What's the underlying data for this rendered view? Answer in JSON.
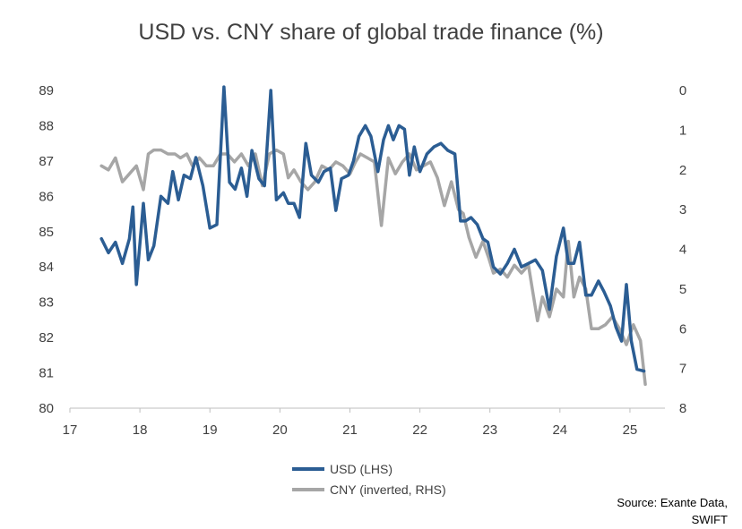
{
  "chart_data": {
    "type": "line",
    "title": "USD vs. CNY share of global trade finance (%)",
    "source_line1": "Source: Exante Data,",
    "source_line2": "SWIFT",
    "xlim": [
      17,
      25.5
    ],
    "x_ticks": [
      17,
      18,
      19,
      20,
      21,
      22,
      23,
      24,
      25
    ],
    "y_left_lim": [
      80,
      89
    ],
    "y_left_ticks": [
      80,
      81,
      82,
      83,
      84,
      85,
      86,
      87,
      88,
      89
    ],
    "y_right_lim": [
      0,
      8
    ],
    "y_right_inverted": true,
    "y_right_ticks": [
      0,
      1,
      2,
      3,
      4,
      5,
      6,
      7,
      8
    ],
    "grid": false,
    "legend_position": "bottom-center",
    "series": [
      {
        "name": "USD (LHS)",
        "axis": "left",
        "color": "#2B5D93",
        "x": [
          17.45,
          17.55,
          17.65,
          17.75,
          17.85,
          17.9,
          17.95,
          18.05,
          18.12,
          18.2,
          18.3,
          18.4,
          18.47,
          18.55,
          18.63,
          18.72,
          18.8,
          18.9,
          19.0,
          19.1,
          19.2,
          19.28,
          19.36,
          19.45,
          19.53,
          19.6,
          19.7,
          19.78,
          19.87,
          19.95,
          20.05,
          20.12,
          20.2,
          20.28,
          20.37,
          20.45,
          20.55,
          20.63,
          20.72,
          20.8,
          20.88,
          20.98,
          21.05,
          21.13,
          21.22,
          21.3,
          21.4,
          21.48,
          21.55,
          21.62,
          21.7,
          21.78,
          21.85,
          21.92,
          22.0,
          22.1,
          22.2,
          22.3,
          22.4,
          22.5,
          22.58,
          22.65,
          22.73,
          22.82,
          22.9,
          22.97,
          23.05,
          23.15,
          23.25,
          23.35,
          23.45,
          23.55,
          23.65,
          23.75,
          23.85,
          23.95,
          24.05,
          24.12,
          24.2,
          24.28,
          24.37,
          24.45,
          24.55,
          24.63,
          24.72,
          24.8,
          24.88,
          24.95,
          25.02,
          25.1,
          25.2
        ],
        "values": [
          84.8,
          84.4,
          84.7,
          84.1,
          84.8,
          85.7,
          83.5,
          85.8,
          84.2,
          84.6,
          86.0,
          85.8,
          86.7,
          85.9,
          86.6,
          86.5,
          87.1,
          86.3,
          85.1,
          85.2,
          89.1,
          86.4,
          86.2,
          86.8,
          86.0,
          87.3,
          86.5,
          86.3,
          89.0,
          85.9,
          86.1,
          85.8,
          85.8,
          85.4,
          87.5,
          86.6,
          86.4,
          86.7,
          86.8,
          85.6,
          86.5,
          86.6,
          87.0,
          87.7,
          88.0,
          87.7,
          86.7,
          87.6,
          88.0,
          87.6,
          88.0,
          87.9,
          86.6,
          87.4,
          86.7,
          87.2,
          87.4,
          87.5,
          87.3,
          87.2,
          85.3,
          85.3,
          85.4,
          85.2,
          84.8,
          84.7,
          84.0,
          83.8,
          84.1,
          84.5,
          84.0,
          84.1,
          84.2,
          83.9,
          82.8,
          84.3,
          85.1,
          84.1,
          84.1,
          84.7,
          83.2,
          83.2,
          83.6,
          83.3,
          82.9,
          82.3,
          81.9,
          83.5,
          81.9,
          81.1,
          81.05
        ]
      },
      {
        "name": "CNY (inverted, RHS)",
        "axis": "right",
        "color": "#A6A6A6",
        "x": [
          17.45,
          17.55,
          17.65,
          17.75,
          17.85,
          17.95,
          18.05,
          18.12,
          18.2,
          18.3,
          18.4,
          18.5,
          18.58,
          18.67,
          18.75,
          18.85,
          18.95,
          19.05,
          19.15,
          19.25,
          19.35,
          19.45,
          19.55,
          19.65,
          19.75,
          19.85,
          19.95,
          20.05,
          20.12,
          20.2,
          20.3,
          20.4,
          20.5,
          20.6,
          20.7,
          20.8,
          20.9,
          21.0,
          21.08,
          21.15,
          21.25,
          21.35,
          21.45,
          21.55,
          21.65,
          21.75,
          21.85,
          21.95,
          22.05,
          22.15,
          22.25,
          22.35,
          22.45,
          22.55,
          22.62,
          22.7,
          22.8,
          22.9,
          22.98,
          23.05,
          23.15,
          23.25,
          23.35,
          23.45,
          23.55,
          23.68,
          23.75,
          23.85,
          23.95,
          24.05,
          24.12,
          24.2,
          24.28,
          24.37,
          24.45,
          24.55,
          24.65,
          24.75,
          24.85,
          24.95,
          25.05,
          25.15,
          25.22
        ],
        "values": [
          1.9,
          2.0,
          1.7,
          2.3,
          2.1,
          1.9,
          2.5,
          1.6,
          1.5,
          1.5,
          1.6,
          1.6,
          1.7,
          1.6,
          1.9,
          1.7,
          1.9,
          1.9,
          1.6,
          1.6,
          1.8,
          1.6,
          1.9,
          1.6,
          2.4,
          1.6,
          1.5,
          1.6,
          2.2,
          2.0,
          2.3,
          2.5,
          2.3,
          1.9,
          2.0,
          1.8,
          1.9,
          2.1,
          1.8,
          1.6,
          1.7,
          1.8,
          3.4,
          1.7,
          2.1,
          1.8,
          1.6,
          2.0,
          1.9,
          1.8,
          2.2,
          2.9,
          2.3,
          3.0,
          3.1,
          3.7,
          4.2,
          3.8,
          4.2,
          4.6,
          4.5,
          4.7,
          4.4,
          4.6,
          4.4,
          5.8,
          5.2,
          5.7,
          5.0,
          5.2,
          3.8,
          5.2,
          4.7,
          5.0,
          6.0,
          6.0,
          5.9,
          5.7,
          6.0,
          6.4,
          5.9,
          6.3,
          7.4
        ]
      }
    ]
  }
}
